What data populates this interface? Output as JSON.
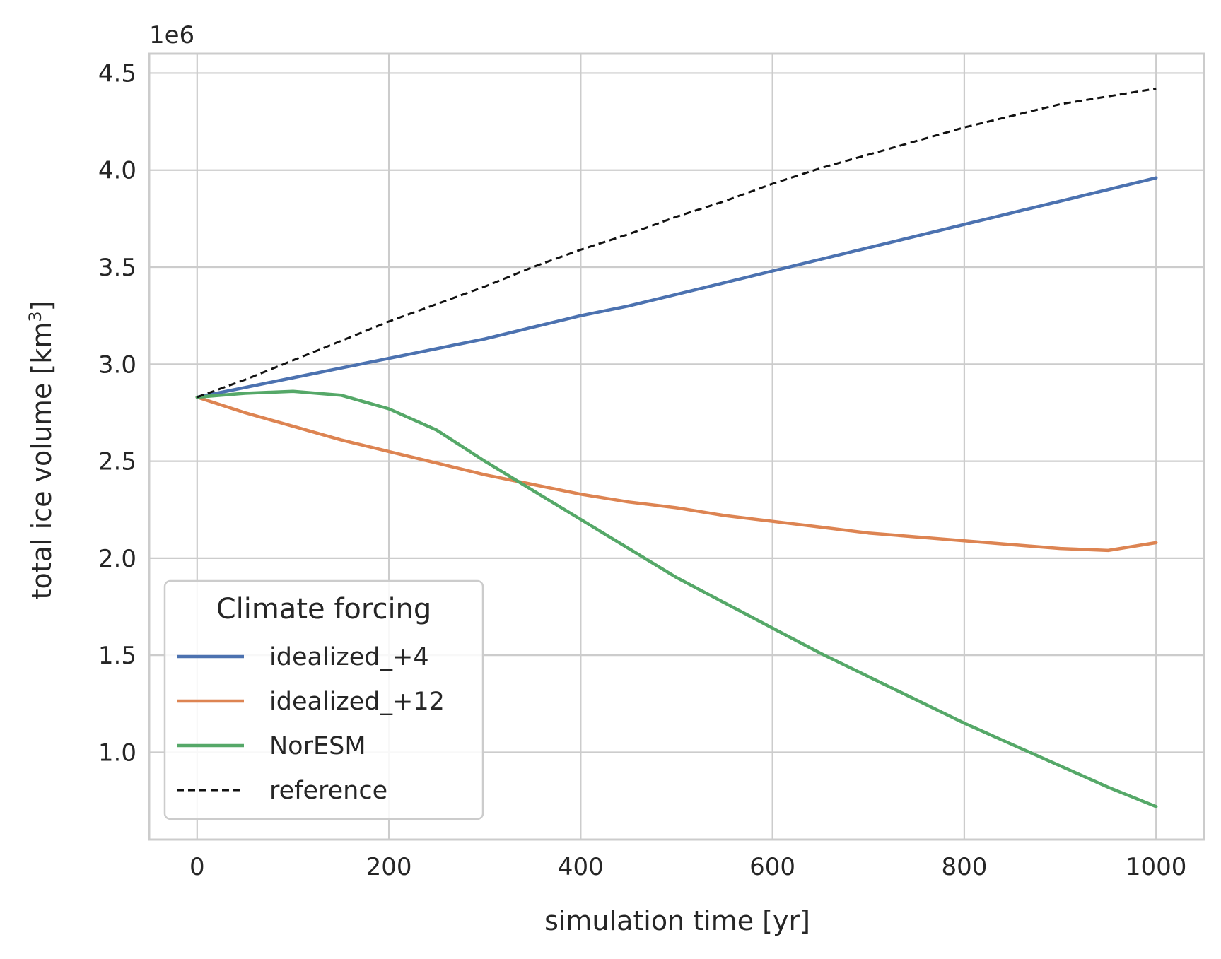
{
  "chart_data": {
    "type": "line",
    "title": "",
    "xlabel": "simulation time [yr]",
    "ylabel_main": "total ice volume [km",
    "ylabel_sup": "3",
    "ylabel_end": "]",
    "y_multiplier": "1e6",
    "xlim": [
      -50,
      1050
    ],
    "ylim": [
      0.55,
      4.6
    ],
    "x_ticks": [
      0,
      200,
      400,
      600,
      800,
      1000
    ],
    "x_tick_labels": [
      "0",
      "200",
      "400",
      "600",
      "800",
      "1000"
    ],
    "y_ticks": [
      1.0,
      1.5,
      2.0,
      2.5,
      3.0,
      3.5,
      4.0,
      4.5
    ],
    "y_tick_labels": [
      "1.0",
      "1.5",
      "2.0",
      "2.5",
      "3.0",
      "3.5",
      "4.0",
      "4.5"
    ],
    "grid": true,
    "legend_placement": "lower-left",
    "legend_title": "Climate forcing",
    "x": [
      0,
      50,
      100,
      150,
      200,
      250,
      300,
      350,
      400,
      450,
      500,
      550,
      600,
      650,
      700,
      750,
      800,
      850,
      900,
      950,
      1000
    ],
    "series": [
      {
        "name": "idealized_+4",
        "color": "#4c72b0",
        "dash": "solid",
        "values": [
          2.83,
          2.88,
          2.93,
          2.98,
          3.03,
          3.08,
          3.13,
          3.19,
          3.25,
          3.3,
          3.36,
          3.42,
          3.48,
          3.54,
          3.6,
          3.66,
          3.72,
          3.78,
          3.84,
          3.9,
          3.96
        ]
      },
      {
        "name": "idealized_+12",
        "color": "#dd8452",
        "dash": "solid",
        "values": [
          2.83,
          2.75,
          2.68,
          2.61,
          2.55,
          2.49,
          2.43,
          2.38,
          2.33,
          2.29,
          2.26,
          2.22,
          2.19,
          2.16,
          2.13,
          2.11,
          2.09,
          2.07,
          2.05,
          2.04,
          2.08
        ]
      },
      {
        "name": "NorESM",
        "color": "#55a868",
        "dash": "solid",
        "values": [
          2.83,
          2.85,
          2.86,
          2.84,
          2.77,
          2.66,
          2.5,
          2.35,
          2.2,
          2.05,
          1.9,
          1.77,
          1.64,
          1.51,
          1.39,
          1.27,
          1.15,
          1.04,
          0.93,
          0.82,
          0.72
        ]
      },
      {
        "name": "reference",
        "color": "#111111",
        "dash": "dashed",
        "values": [
          2.83,
          2.92,
          3.02,
          3.12,
          3.22,
          3.31,
          3.4,
          3.5,
          3.59,
          3.67,
          3.76,
          3.84,
          3.93,
          4.01,
          4.08,
          4.15,
          4.22,
          4.28,
          4.34,
          4.38,
          4.42
        ]
      }
    ]
  }
}
